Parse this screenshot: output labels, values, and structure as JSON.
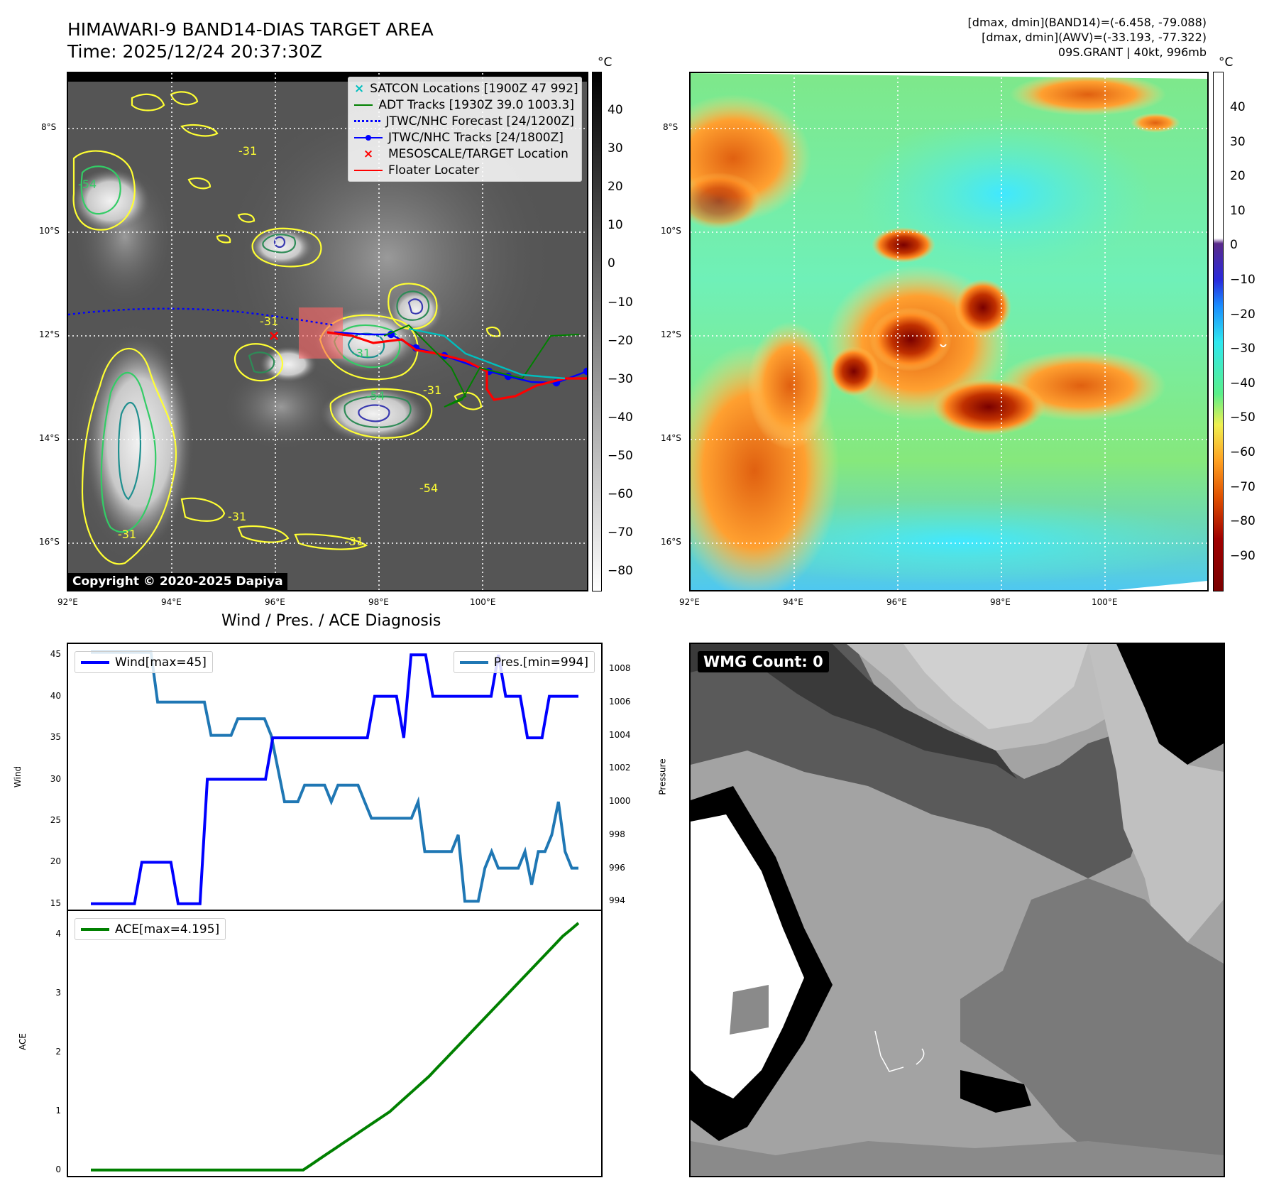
{
  "header": {
    "title_line1": "HIMAWARI-9 BAND14-DIAS TARGET AREA",
    "title_line2": "Time: 2025/12/24 20:37:30Z",
    "right_line1": "[dmax, dmin](BAND14)=(-6.458, -79.088)",
    "right_line2": "[dmax, dmin](AWV)=(-33.193, -77.322)",
    "right_line3": "09S.GRANT | 40kt, 996mb"
  },
  "map": {
    "lat_labels": [
      "8°S",
      "10°S",
      "12°S",
      "14°S",
      "16°S"
    ],
    "lon_labels": [
      "92°E",
      "94°E",
      "96°E",
      "98°E",
      "100°E"
    ],
    "contour_labels": [
      "-31",
      "-54",
      "-31",
      "-54",
      "-31",
      "-31",
      "-31",
      "-54",
      "-31",
      "-31"
    ],
    "copyright": "Copyright © 2020-2025 Dapiya",
    "legend": [
      {
        "label": "SATCON Locations [1900Z 47 992]",
        "marker": "x",
        "color": "#00bfbf"
      },
      {
        "label": "ADT Tracks [1930Z 39.0 1003.3]",
        "marker": "line",
        "color": "#008000"
      },
      {
        "label": "JTWC/NHC Forecast [24/1200Z]",
        "marker": "dotted",
        "color": "#0000ff"
      },
      {
        "label": "JTWC/NHC Tracks [24/1800Z]",
        "marker": "line-dot",
        "color": "#0000ff"
      },
      {
        "label": "MESOSCALE/TARGET Location",
        "marker": "x",
        "color": "#ff0000"
      },
      {
        "label": "Floater Locater",
        "marker": "line",
        "color": "#ff0000"
      }
    ],
    "colorbar_unit": "°C",
    "colorbar_ticks": [
      "40",
      "30",
      "20",
      "10",
      "0",
      "−10",
      "−20",
      "−30",
      "−40",
      "−50",
      "−60",
      "−70",
      "−80"
    ]
  },
  "awv_map": {
    "lat_labels": [
      "8°S",
      "10°S",
      "12°S",
      "14°S",
      "16°S"
    ],
    "lon_labels": [
      "92°E",
      "94°E",
      "96°E",
      "98°E",
      "100°E"
    ],
    "colorbar_unit": "°C",
    "colorbar_ticks": [
      "40",
      "30",
      "20",
      "10",
      "0",
      "−10",
      "−20",
      "−30",
      "−40",
      "−50",
      "−60",
      "−70",
      "−80",
      "−90"
    ]
  },
  "chart_data": [
    {
      "type": "line",
      "title": "Wind / Pres. / ACE Diagnosis",
      "xlabel": "",
      "ylabel": "Wind",
      "ylabel_right": "Pressure",
      "ylim": [
        14.3,
        46.3
      ],
      "ylim_right": [
        993.5,
        1009.5
      ],
      "y_ticks": [
        "15",
        "20",
        "25",
        "30",
        "35",
        "40",
        "45"
      ],
      "y_right_ticks": [
        "994",
        "996",
        "998",
        "1000",
        "1002",
        "1004",
        "1006",
        "1008"
      ],
      "series": [
        {
          "name": "Wind[max=45]",
          "color": "#0000ff",
          "values": [
            15,
            15,
            15,
            15,
            15,
            15,
            15,
            20,
            20,
            20,
            20,
            20,
            15,
            15,
            15,
            15,
            30,
            30,
            30,
            30,
            30,
            30,
            30,
            30,
            30,
            35,
            35,
            35,
            35,
            35,
            35,
            35,
            35,
            35,
            35,
            35,
            35,
            35,
            35,
            40,
            40,
            40,
            40,
            35,
            45,
            45,
            45,
            40,
            40,
            40,
            40,
            40,
            40,
            40,
            40,
            40,
            45,
            40,
            40,
            40,
            35,
            35,
            35,
            40,
            40,
            40,
            40,
            40
          ]
        },
        {
          "name": "Pres.[min=994]",
          "color": "#1f77b4",
          "axis": "right",
          "values": [
            1009,
            1009,
            1009,
            1009,
            1009,
            1009,
            1009,
            1009,
            1009,
            1009,
            1006,
            1006,
            1006,
            1006,
            1006,
            1006,
            1006,
            1006,
            1004,
            1004,
            1004,
            1004,
            1005,
            1005,
            1005,
            1005,
            1005,
            1004,
            1002,
            1000,
            1000,
            1000,
            1001,
            1001,
            1001,
            1001,
            1000,
            1001,
            1001,
            1001,
            1001,
            1000,
            999,
            999,
            999,
            999,
            999,
            999,
            999,
            1000,
            997,
            997,
            997,
            997,
            997,
            998,
            994,
            994,
            994,
            996,
            997,
            996,
            996,
            996,
            996,
            997,
            995,
            997,
            997,
            998,
            1000,
            997,
            996,
            996
          ]
        }
      ]
    },
    {
      "type": "line",
      "title": "",
      "ylabel": "ACE",
      "ylim": [
        -0.1,
        4.4
      ],
      "y_ticks": [
        "0",
        "1",
        "2",
        "3",
        "4"
      ],
      "series": [
        {
          "name": "ACE[max=4.195]",
          "color": "#008000",
          "values": [
            0,
            0,
            0,
            0,
            0,
            0,
            0,
            0,
            0,
            0,
            0,
            0,
            0,
            0,
            0,
            0,
            0,
            0,
            0,
            0,
            0,
            0,
            0,
            0,
            0,
            0,
            0,
            0,
            0.09,
            0.18,
            0.27,
            0.36,
            0.45,
            0.54,
            0.63,
            0.72,
            0.81,
            0.9,
            0.99,
            1.11,
            1.23,
            1.35,
            1.47,
            1.59,
            1.73,
            1.87,
            2.01,
            2.15,
            2.29,
            2.43,
            2.57,
            2.71,
            2.85,
            2.99,
            3.13,
            3.27,
            3.41,
            3.55,
            3.69,
            3.83,
            3.97,
            4.08,
            4.195
          ]
        }
      ]
    }
  ],
  "wmg": {
    "label": "WMG Count: 0"
  }
}
